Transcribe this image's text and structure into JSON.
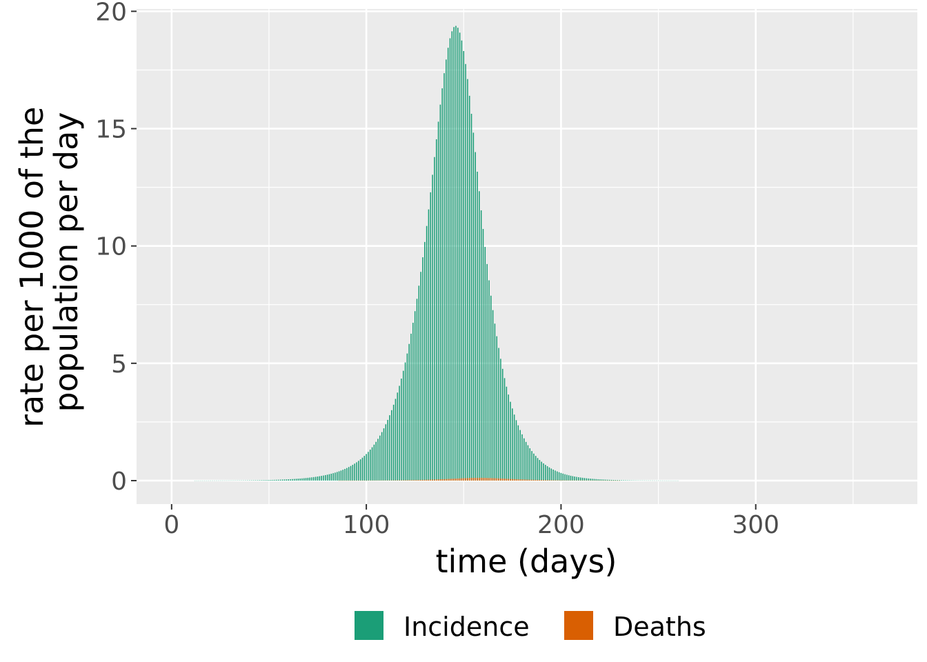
{
  "chart_data": {
    "type": "bar",
    "xlabel": "time (days)",
    "ylabel_lines": [
      "rate per 1000 of the",
      "population per day"
    ],
    "xlim": [
      -18,
      383
    ],
    "ylim": [
      -1,
      20.1
    ],
    "xticks": [
      0,
      100,
      200,
      300
    ],
    "xtick_labels": [
      "0",
      "100",
      "200",
      "300"
    ],
    "yticks": [
      0,
      5,
      10,
      15,
      20
    ],
    "ytick_labels": [
      "0",
      "5",
      "10",
      "15",
      "20"
    ],
    "grid": true,
    "legend_position": "bottom",
    "x": {
      "start": 0,
      "end": 365,
      "step": 1
    },
    "series": [
      {
        "name": "Incidence",
        "color": "#1b9e77",
        "curve": {
          "shape": "peaked",
          "peak": 19.3,
          "peak_day": 147,
          "rise_rate": 0.075,
          "fall_rate": 0.09
        }
      },
      {
        "name": "Deaths",
        "color": "#d95f02",
        "curve": {
          "shape": "peaked",
          "peak": 0.12,
          "peak_day": 158,
          "rise_rate": 0.07,
          "fall_rate": 0.07
        }
      }
    ]
  }
}
